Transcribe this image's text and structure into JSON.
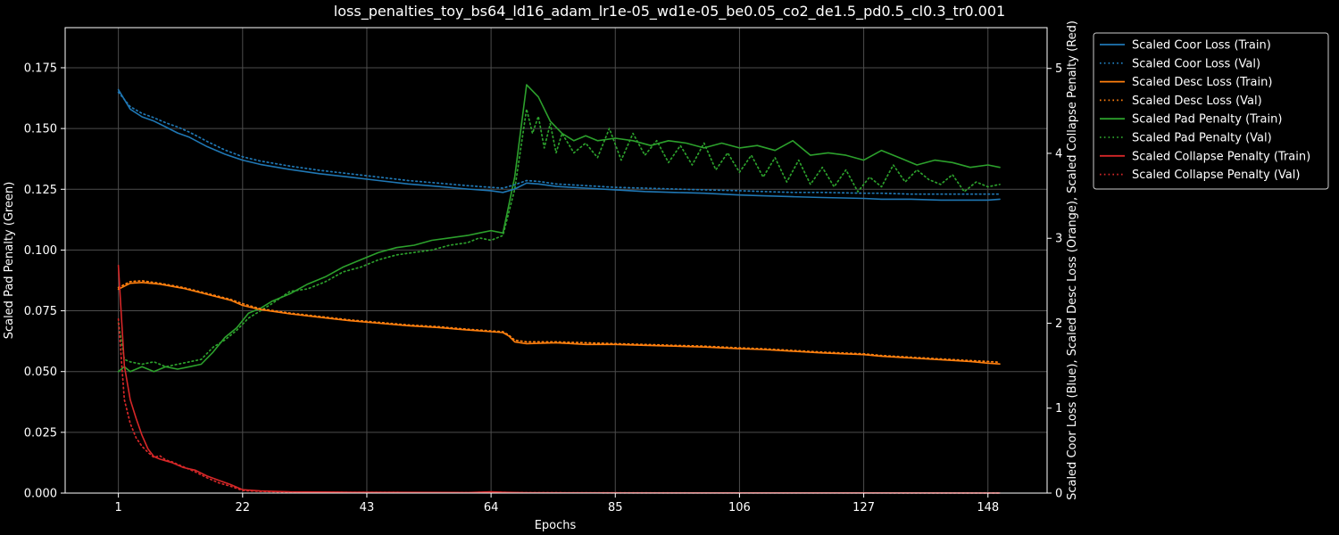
{
  "chart_data": {
    "type": "line",
    "title": "loss_penalties_toy_bs64_ld16_adam_lr1e-05_wd1e-05_be0.05_co2_de1.5_pd0.5_cl0.3_tr0.001",
    "xlabel": "Epochs",
    "ylabel_left": "Scaled Pad Penalty (Green)",
    "ylabel_right": "Scaled Coor Loss (Blue), Scaled Desc Loss (Orange), Scaled Collapse Penalty (Red)",
    "xlim": [
      -8,
      158
    ],
    "ylim_left": [
      0,
      0.1915
    ],
    "ylim_right": [
      0,
      5.48
    ],
    "grid": true,
    "legend_position": "outside top-right",
    "xticks": [
      1,
      22,
      43,
      64,
      85,
      106,
      127,
      148
    ],
    "xtick_labels": [
      "1",
      "22",
      "43",
      "64",
      "85",
      "106",
      "127",
      "148"
    ],
    "yticks_left": [
      0,
      0.025,
      0.05,
      0.075,
      0.1,
      0.125,
      0.15,
      0.175
    ],
    "yticks_left_labels": [
      "0.000",
      "0.025",
      "0.050",
      "0.075",
      "0.100",
      "0.125",
      "0.150",
      "0.175"
    ],
    "yticks_right": [
      0,
      1,
      2,
      3,
      4,
      5
    ],
    "yticks_right_labels": [
      "0",
      "1",
      "2",
      "3",
      "4",
      "5"
    ],
    "series": [
      {
        "name": "Scaled Coor Loss (Train)",
        "color": "#1f77b4",
        "style": "solid",
        "axis": "right",
        "x": [
          1,
          3,
          5,
          7,
          9,
          11,
          13,
          16,
          19,
          22,
          25,
          30,
          35,
          40,
          45,
          50,
          55,
          60,
          64,
          66,
          68,
          70,
          72,
          75,
          80,
          85,
          90,
          95,
          100,
          106,
          110,
          115,
          120,
          127,
          130,
          135,
          140,
          145,
          148,
          150
        ],
        "values": [
          4.75,
          4.52,
          4.43,
          4.38,
          4.31,
          4.24,
          4.19,
          4.08,
          3.99,
          3.92,
          3.87,
          3.81,
          3.76,
          3.72,
          3.68,
          3.64,
          3.61,
          3.58,
          3.56,
          3.54,
          3.58,
          3.65,
          3.64,
          3.61,
          3.59,
          3.57,
          3.55,
          3.54,
          3.53,
          3.51,
          3.5,
          3.49,
          3.48,
          3.47,
          3.46,
          3.46,
          3.45,
          3.45,
          3.45,
          3.46
        ]
      },
      {
        "name": "Scaled Coor Loss (Val)",
        "color": "#1f77b4",
        "style": "dotted",
        "axis": "right",
        "x": [
          1,
          3,
          5,
          7,
          9,
          11,
          13,
          16,
          19,
          22,
          25,
          30,
          35,
          40,
          45,
          50,
          55,
          60,
          64,
          66,
          68,
          70,
          72,
          75,
          80,
          85,
          90,
          95,
          100,
          106,
          110,
          115,
          120,
          127,
          130,
          135,
          140,
          145,
          148,
          150
        ],
        "values": [
          4.72,
          4.55,
          4.47,
          4.42,
          4.36,
          4.31,
          4.25,
          4.14,
          4.04,
          3.96,
          3.91,
          3.85,
          3.8,
          3.76,
          3.72,
          3.68,
          3.65,
          3.62,
          3.6,
          3.59,
          3.63,
          3.68,
          3.67,
          3.64,
          3.62,
          3.6,
          3.59,
          3.58,
          3.57,
          3.56,
          3.55,
          3.54,
          3.54,
          3.53,
          3.53,
          3.52,
          3.52,
          3.52,
          3.52,
          3.52
        ]
      },
      {
        "name": "Scaled Desc Loss (Train)",
        "color": "#ff7f0e",
        "style": "solid",
        "axis": "right",
        "x": [
          1,
          3,
          5,
          8,
          12,
          16,
          20,
          22,
          25,
          30,
          35,
          40,
          45,
          50,
          55,
          60,
          64,
          66,
          67,
          68,
          70,
          75,
          80,
          85,
          90,
          95,
          100,
          106,
          110,
          115,
          120,
          127,
          130,
          135,
          140,
          145,
          148,
          150
        ],
        "values": [
          2.4,
          2.47,
          2.48,
          2.46,
          2.41,
          2.34,
          2.27,
          2.21,
          2.16,
          2.11,
          2.07,
          2.03,
          2.0,
          1.97,
          1.95,
          1.92,
          1.9,
          1.89,
          1.85,
          1.78,
          1.76,
          1.77,
          1.75,
          1.75,
          1.74,
          1.73,
          1.72,
          1.7,
          1.69,
          1.67,
          1.65,
          1.63,
          1.61,
          1.59,
          1.57,
          1.55,
          1.53,
          1.52
        ]
      },
      {
        "name": "Scaled Desc Loss (Val)",
        "color": "#ff7f0e",
        "style": "dotted",
        "axis": "right",
        "x": [
          1,
          3,
          5,
          8,
          12,
          16,
          20,
          22,
          25,
          30,
          35,
          40,
          45,
          50,
          55,
          60,
          64,
          66,
          67,
          68,
          70,
          75,
          80,
          85,
          90,
          95,
          100,
          106,
          110,
          115,
          120,
          127,
          130,
          135,
          140,
          145,
          148,
          150
        ],
        "values": [
          2.42,
          2.49,
          2.5,
          2.47,
          2.42,
          2.35,
          2.28,
          2.23,
          2.17,
          2.12,
          2.08,
          2.04,
          2.01,
          1.98,
          1.96,
          1.93,
          1.91,
          1.9,
          1.86,
          1.8,
          1.78,
          1.78,
          1.77,
          1.76,
          1.75,
          1.74,
          1.73,
          1.71,
          1.7,
          1.68,
          1.66,
          1.64,
          1.62,
          1.6,
          1.58,
          1.56,
          1.55,
          1.54
        ]
      },
      {
        "name": "Scaled Pad Penalty (Train)",
        "color": "#2ca02c",
        "style": "solid",
        "axis": "left",
        "x": [
          1,
          2,
          3,
          5,
          7,
          9,
          11,
          13,
          15,
          17,
          19,
          21,
          23,
          25,
          27,
          30,
          33,
          36,
          39,
          42,
          45,
          48,
          51,
          54,
          57,
          60,
          62,
          64,
          66,
          68,
          70,
          72,
          74,
          76,
          78,
          80,
          82,
          85,
          88,
          91,
          94,
          97,
          100,
          103,
          106,
          109,
          112,
          115,
          118,
          121,
          124,
          127,
          130,
          133,
          136,
          139,
          142,
          145,
          148,
          150
        ],
        "values": [
          0.05,
          0.052,
          0.05,
          0.052,
          0.05,
          0.052,
          0.051,
          0.052,
          0.053,
          0.058,
          0.064,
          0.068,
          0.074,
          0.076,
          0.079,
          0.082,
          0.086,
          0.089,
          0.093,
          0.096,
          0.099,
          0.101,
          0.102,
          0.104,
          0.105,
          0.106,
          0.107,
          0.108,
          0.107,
          0.13,
          0.168,
          0.163,
          0.153,
          0.148,
          0.145,
          0.147,
          0.145,
          0.146,
          0.145,
          0.143,
          0.145,
          0.144,
          0.142,
          0.144,
          0.142,
          0.143,
          0.141,
          0.145,
          0.139,
          0.14,
          0.139,
          0.137,
          0.141,
          0.138,
          0.135,
          0.137,
          0.136,
          0.134,
          0.135,
          0.134
        ]
      },
      {
        "name": "Scaled Pad Penalty (Val)",
        "color": "#2ca02c",
        "style": "dotted",
        "axis": "left",
        "x": [
          1,
          2,
          3,
          5,
          7,
          9,
          11,
          13,
          15,
          17,
          19,
          21,
          23,
          25,
          27,
          30,
          33,
          36,
          39,
          42,
          45,
          48,
          51,
          54,
          57,
          60,
          62,
          64,
          66,
          68,
          70,
          71,
          72,
          73,
          74,
          75,
          76,
          78,
          80,
          82,
          84,
          86,
          88,
          90,
          92,
          94,
          96,
          98,
          100,
          102,
          104,
          106,
          108,
          110,
          112,
          114,
          116,
          118,
          120,
          122,
          124,
          126,
          128,
          130,
          132,
          134,
          136,
          138,
          140,
          142,
          144,
          146,
          148,
          150
        ],
        "values": [
          0.07,
          0.055,
          0.054,
          0.053,
          0.054,
          0.052,
          0.053,
          0.054,
          0.055,
          0.06,
          0.063,
          0.067,
          0.072,
          0.075,
          0.078,
          0.083,
          0.084,
          0.087,
          0.091,
          0.093,
          0.096,
          0.098,
          0.099,
          0.1,
          0.102,
          0.103,
          0.105,
          0.104,
          0.106,
          0.125,
          0.158,
          0.148,
          0.155,
          0.142,
          0.152,
          0.14,
          0.148,
          0.14,
          0.144,
          0.138,
          0.15,
          0.137,
          0.148,
          0.139,
          0.145,
          0.136,
          0.143,
          0.135,
          0.144,
          0.133,
          0.14,
          0.132,
          0.139,
          0.13,
          0.138,
          0.128,
          0.137,
          0.127,
          0.134,
          0.126,
          0.133,
          0.124,
          0.13,
          0.126,
          0.135,
          0.128,
          0.133,
          0.129,
          0.127,
          0.131,
          0.124,
          0.128,
          0.126,
          0.127
        ]
      },
      {
        "name": "Scaled Collapse Penalty (Train)",
        "color": "#d62728",
        "style": "solid",
        "axis": "right",
        "x": [
          1,
          2,
          3,
          4,
          5,
          6,
          7,
          8,
          9,
          10,
          12,
          14,
          16,
          18,
          20,
          22,
          25,
          30,
          40,
          50,
          60,
          64,
          66,
          70,
          80,
          100,
          120,
          150
        ],
        "values": [
          2.68,
          1.5,
          1.1,
          0.88,
          0.68,
          0.52,
          0.43,
          0.4,
          0.38,
          0.36,
          0.3,
          0.27,
          0.2,
          0.15,
          0.1,
          0.04,
          0.025,
          0.015,
          0.01,
          0.008,
          0.006,
          0.015,
          0.01,
          0.004,
          0.003,
          0.002,
          0.002,
          0.001
        ]
      },
      {
        "name": "Scaled Collapse Penalty (Val)",
        "color": "#d62728",
        "style": "dotted",
        "axis": "right",
        "x": [
          1,
          2,
          3,
          4,
          5,
          6,
          7,
          8,
          9,
          10,
          12,
          14,
          16,
          18,
          20,
          22,
          25,
          30,
          40,
          50,
          60,
          64,
          66,
          70,
          80,
          100,
          120,
          150
        ],
        "values": [
          2.05,
          1.1,
          0.82,
          0.65,
          0.55,
          0.48,
          0.42,
          0.44,
          0.39,
          0.37,
          0.31,
          0.25,
          0.18,
          0.12,
          0.08,
          0.03,
          0.02,
          0.012,
          0.008,
          0.007,
          0.005,
          0.012,
          0.008,
          0.004,
          0.003,
          0.002,
          0.002,
          0.001
        ]
      }
    ]
  }
}
